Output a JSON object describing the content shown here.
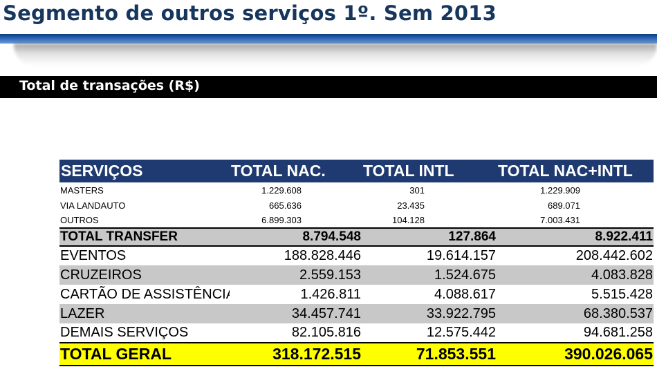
{
  "slide": {
    "title": "Segmento de outros serviços 1º. Sem 2013",
    "subtitle": "Total de transações (R$)"
  },
  "table": {
    "headers": [
      "SERVIÇOS",
      "TOTAL NAC.",
      "TOTAL INTL",
      "TOTAL NAC+INTL"
    ],
    "sub_rows": [
      {
        "name": "MASTERS",
        "nac": "1.229.608",
        "intl": "301",
        "total": "1.229.909"
      },
      {
        "name": "VIA LANDAUTO",
        "nac": "665.636",
        "intl": "23.435",
        "total": "689.071"
      },
      {
        "name": "OUTROS",
        "nac": "6.899.303",
        "intl": "104.128",
        "total": "7.003.431"
      }
    ],
    "transfer": {
      "name": "TOTAL TRANSFER",
      "nac": "8.794.548",
      "intl": "127.864",
      "total": "8.922.411"
    },
    "rows": [
      {
        "name": "EVENTOS",
        "nac": "188.828.446",
        "intl": "19.614.157",
        "total": "208.442.602"
      },
      {
        "name": "CRUZEIROS",
        "nac": "2.559.153",
        "intl": "1.524.675",
        "total": "4.083.828"
      },
      {
        "name": "CARTÃO DE ASSISTÊNCIA",
        "nac": "1.426.811",
        "intl": "4.088.617",
        "total": "5.515.428"
      },
      {
        "name": "LAZER",
        "nac": "34.457.741",
        "intl": "33.922.795",
        "total": "68.380.537"
      },
      {
        "name": "DEMAIS SERVIÇOS",
        "nac": "82.105.816",
        "intl": "12.575.442",
        "total": "94.681.258"
      }
    ],
    "grand_total": {
      "name": "TOTAL GERAL",
      "nac": "318.172.515",
      "intl": "71.853.551",
      "total": "390.026.065"
    }
  },
  "colors": {
    "title_text": "#17365d",
    "header_bg": "#1f3a70",
    "grey_row": "#c8c8c8",
    "total_highlight": "#ffff00",
    "subtitle_bar": "#000000"
  }
}
